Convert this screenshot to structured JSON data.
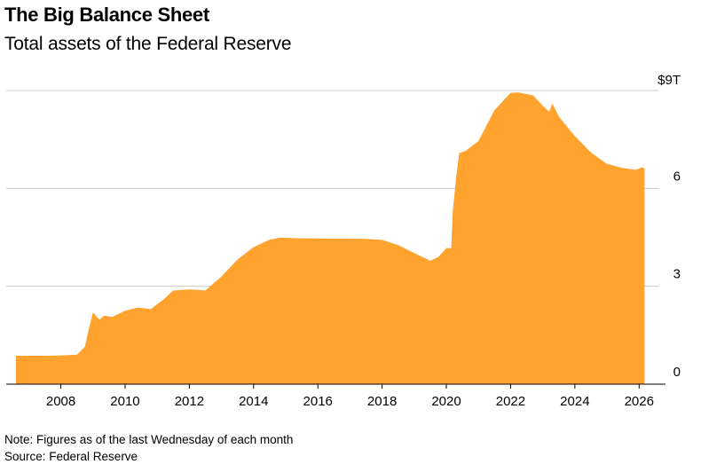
{
  "header": {
    "title": "The Big Balance Sheet",
    "subtitle": "Total assets of the Federal Reserve"
  },
  "footer": {
    "note": "Note: Figures as of the last Wednesday of each month",
    "source": "Source: Federal Reserve"
  },
  "colors": {
    "area": "#FFA32E",
    "grid": "#cccccc",
    "axis": "#000000"
  },
  "chart_data": {
    "type": "area",
    "title": "The Big Balance Sheet",
    "subtitle": "Total assets of the Federal Reserve",
    "xlim": [
      2006.3,
      2026.6
    ],
    "ylim": [
      0,
      9
    ],
    "yticks": [
      0,
      3,
      6,
      9
    ],
    "ytick_labels": [
      "0",
      "3",
      "6",
      "$9T"
    ],
    "xticks": [
      2008,
      2010,
      2012,
      2014,
      2016,
      2018,
      2020,
      2022,
      2024,
      2026
    ],
    "xtick_labels": [
      "2008",
      "2010",
      "2012",
      "2014",
      "2016",
      "2018",
      "2020",
      "2022",
      "2024",
      "2026"
    ],
    "grid": true,
    "series": [
      {
        "x": [
          2006.6,
          2007.5,
          2008.0,
          2008.5,
          2008.75,
          2008.85,
          2009.0,
          2009.2,
          2009.35,
          2009.6,
          2010.0,
          2010.4,
          2010.8,
          2011.2,
          2011.5,
          2012.0,
          2012.5,
          2013.0,
          2013.5,
          2014.0,
          2014.5,
          2014.83,
          2015.5,
          2016.5,
          2017.5,
          2018.0,
          2018.5,
          2019.0,
          2019.5,
          2019.75,
          2020.0,
          2020.15,
          2020.2,
          2020.3,
          2020.4,
          2020.6,
          2021.0,
          2021.5,
          2022.0,
          2022.25,
          2022.7,
          2023.0,
          2023.2,
          2023.3,
          2023.5,
          2024.0,
          2024.5,
          2025.0,
          2025.5,
          2025.9,
          2026.1,
          2026.17
        ],
        "values": [
          0.87,
          0.87,
          0.88,
          0.9,
          1.15,
          1.6,
          2.2,
          1.98,
          2.1,
          2.06,
          2.25,
          2.35,
          2.3,
          2.6,
          2.87,
          2.9,
          2.87,
          3.3,
          3.82,
          4.2,
          4.43,
          4.49,
          4.47,
          4.46,
          4.45,
          4.42,
          4.26,
          4.02,
          3.78,
          3.9,
          4.17,
          4.17,
          5.3,
          6.3,
          7.08,
          7.15,
          7.45,
          8.4,
          8.93,
          8.94,
          8.85,
          8.53,
          8.35,
          8.6,
          8.2,
          7.6,
          7.1,
          6.75,
          6.62,
          6.57,
          6.65,
          6.6
        ]
      }
    ]
  }
}
